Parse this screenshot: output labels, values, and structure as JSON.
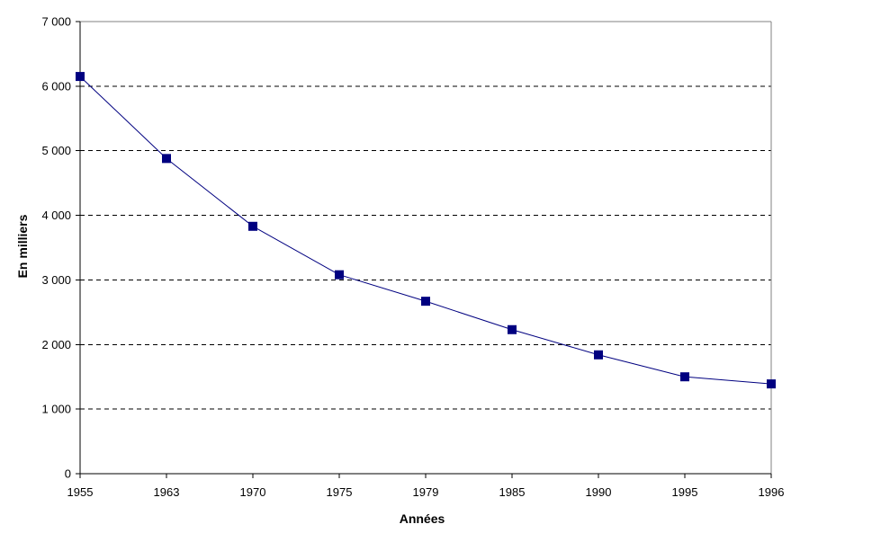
{
  "chart_data": {
    "type": "line",
    "title": "",
    "xlabel": "Années",
    "ylabel": "En milliers",
    "categories": [
      "1955",
      "1963",
      "1970",
      "1975",
      "1979",
      "1985",
      "1990",
      "1995",
      "1996"
    ],
    "series": [
      {
        "values": [
          6150,
          4880,
          3830,
          3080,
          2670,
          2230,
          1840,
          1500,
          1390
        ]
      }
    ],
    "ylim": [
      0,
      7000
    ],
    "ytick_interval": 1000,
    "ytick_labels": [
      "0",
      "1 000",
      "2 000",
      "3 000",
      "4 000",
      "5 000",
      "6 000",
      "7 000"
    ],
    "grid": {
      "horizontal": true,
      "style": "dashed"
    },
    "legend": "none",
    "marker": {
      "shape": "square",
      "size": 10
    },
    "colors": {
      "line": "#000080",
      "marker": "#000080",
      "gridline": "#000000",
      "axis": "#000000",
      "plot_border": "#808080",
      "background": "#ffffff",
      "text": "#000000"
    }
  }
}
